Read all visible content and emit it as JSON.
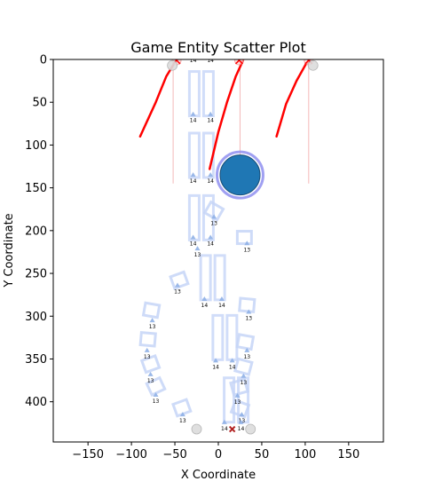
{
  "chart_data": {
    "type": "scatter",
    "title": "Game Entity Scatter Plot",
    "xlabel": "X Coordinate",
    "ylabel": "Y Coordinate",
    "xlim": [
      -190,
      190
    ],
    "ylim": [
      447,
      0
    ],
    "y_inverted": true,
    "xticks": [
      -150,
      -100,
      -50,
      0,
      50,
      100,
      150
    ],
    "yticks": [
      0,
      50,
      100,
      150,
      200,
      250,
      300,
      350,
      400
    ],
    "grid": false,
    "colors": {
      "entity_outline": "#c6d5f7",
      "unit_marker": "#8fb0e6",
      "arc": "#ff0000",
      "guide_line": "#f4b8b8",
      "player_fill": "#1f77b4",
      "player_ring": "#8f8ff0",
      "corner": "#dcdcdc",
      "x_marker": "#b22222"
    },
    "player": {
      "x": 25,
      "y": 135
    },
    "rect_pairs": [
      {
        "x": -20,
        "y": 40
      },
      {
        "x": -20,
        "y": 112
      },
      {
        "x": -20,
        "y": 185
      },
      {
        "x": -7,
        "y": 255
      },
      {
        "x": 7,
        "y": 325
      },
      {
        "x": 20,
        "y": 398
      }
    ],
    "tiles": [
      {
        "x": -45,
        "y": 258,
        "angle": -20
      },
      {
        "x": -77,
        "y": 293,
        "angle": 10
      },
      {
        "x": -81,
        "y": 327,
        "angle": 5
      },
      {
        "x": -78,
        "y": 356,
        "angle": -20
      },
      {
        "x": -72,
        "y": 382,
        "angle": -25
      },
      {
        "x": -42,
        "y": 407,
        "angle": -20
      },
      {
        "x": -5,
        "y": 177,
        "angle": 30
      },
      {
        "x": 30,
        "y": 208,
        "angle": 0
      },
      {
        "x": 33,
        "y": 287,
        "angle": 5
      },
      {
        "x": 31,
        "y": 330,
        "angle": 10
      },
      {
        "x": 29,
        "y": 359,
        "angle": 15
      },
      {
        "x": 24,
        "y": 383,
        "angle": -15
      },
      {
        "x": 25,
        "y": 408,
        "angle": 20
      }
    ],
    "unit_markers": [
      {
        "x": -29,
        "y": 64,
        "label": "14"
      },
      {
        "x": -9,
        "y": 64,
        "label": "14"
      },
      {
        "x": -29,
        "y": 135,
        "label": "14"
      },
      {
        "x": -9,
        "y": 135,
        "label": "14"
      },
      {
        "x": -29,
        "y": 208,
        "label": "14"
      },
      {
        "x": -9,
        "y": 208,
        "label": "14"
      },
      {
        "x": -24,
        "y": 221,
        "label": "13"
      },
      {
        "x": -5,
        "y": 184,
        "label": "13"
      },
      {
        "x": 33,
        "y": 215,
        "label": "13"
      },
      {
        "x": -47,
        "y": 264,
        "label": "13"
      },
      {
        "x": -16,
        "y": 280,
        "label": "14"
      },
      {
        "x": 4,
        "y": 280,
        "label": "14"
      },
      {
        "x": 35,
        "y": 295,
        "label": "13"
      },
      {
        "x": -76,
        "y": 305,
        "label": "13"
      },
      {
        "x": -82,
        "y": 340,
        "label": "13"
      },
      {
        "x": 33,
        "y": 340,
        "label": "13"
      },
      {
        "x": -3,
        "y": 352,
        "label": "14"
      },
      {
        "x": 16,
        "y": 352,
        "label": "14"
      },
      {
        "x": -78,
        "y": 368,
        "label": "13"
      },
      {
        "x": 29,
        "y": 370,
        "label": "13"
      },
      {
        "x": -72,
        "y": 392,
        "label": "13"
      },
      {
        "x": 22,
        "y": 393,
        "label": "13"
      },
      {
        "x": -41,
        "y": 415,
        "label": "13"
      },
      {
        "x": 27,
        "y": 415,
        "label": "13"
      },
      {
        "x": 7,
        "y": 424,
        "label": "14"
      },
      {
        "x": 26,
        "y": 424,
        "label": "14"
      },
      {
        "x": -29,
        "y": -6,
        "label": "14"
      },
      {
        "x": -9,
        "y": -6,
        "label": "14"
      }
    ],
    "arcs": [
      {
        "points": [
          [
            -90,
            90
          ],
          [
            -72,
            50
          ],
          [
            -60,
            20
          ],
          [
            -48,
            0
          ],
          [
            -44,
            -4
          ]
        ]
      },
      {
        "points": [
          [
            -10,
            128
          ],
          [
            0,
            85
          ],
          [
            10,
            50
          ],
          [
            20,
            20
          ],
          [
            28,
            2
          ],
          [
            30,
            -4
          ]
        ]
      },
      {
        "points": [
          [
            67,
            90
          ],
          [
            78,
            52
          ],
          [
            90,
            25
          ],
          [
            101,
            5
          ],
          [
            108,
            -2
          ]
        ]
      }
    ],
    "arc_ends": [
      {
        "x": -48,
        "y": 1
      },
      {
        "x": 24,
        "y": 1
      },
      {
        "x": 104,
        "y": 1
      }
    ],
    "guide_lines": [
      {
        "x": -52,
        "y0": 0,
        "y1": 145
      },
      {
        "x": 25,
        "y0": 0,
        "y1": 145
      },
      {
        "x": 104,
        "y0": 0,
        "y1": 145
      }
    ],
    "corner_markers": [
      {
        "x": -53,
        "y": 7
      },
      {
        "x": 109,
        "y": 7
      },
      {
        "x": -25,
        "y": 432
      },
      {
        "x": 37,
        "y": 432
      }
    ],
    "goal_marker": {
      "x": 16,
      "y": 432
    }
  }
}
